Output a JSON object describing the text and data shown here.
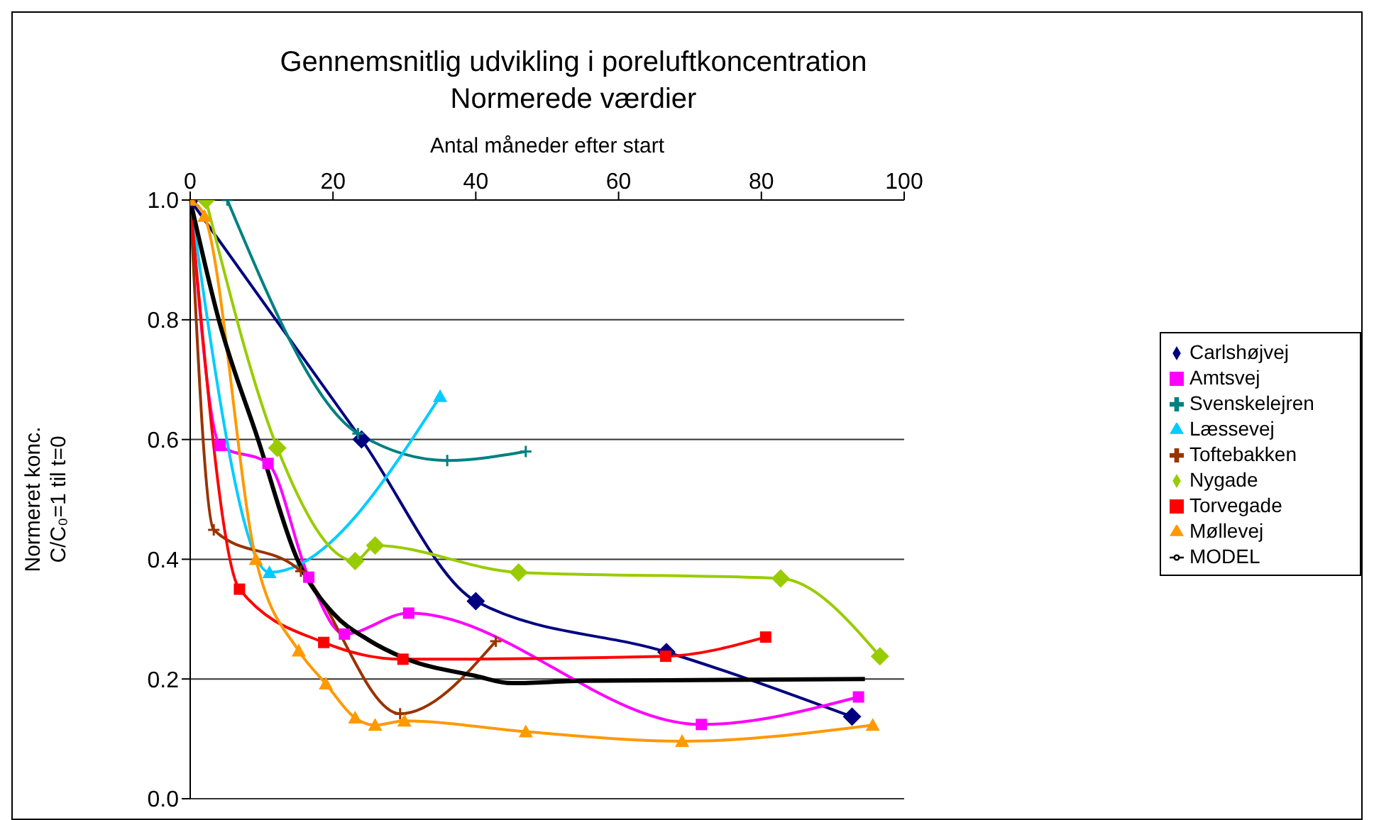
{
  "chart_data": {
    "type": "line",
    "title": "Gennemsnitlig udvikling i poreluftkoncentration",
    "subtitle": "Normerede værdier",
    "xlabel": "Antal måneder efter start",
    "ylabel": "Normeret konc.\nC/C₀=1 til t=0",
    "xlim": [
      0,
      100
    ],
    "xticks": [
      0,
      20,
      40,
      60,
      80,
      100
    ],
    "ylim": [
      0,
      1
    ],
    "yticks": [
      {
        "value": 0,
        "label": "0.0"
      },
      {
        "value": 0.2,
        "label": "0.2"
      },
      {
        "value": 0.4,
        "label": "0.4"
      },
      {
        "value": 0.6,
        "label": "0.6"
      },
      {
        "value": 0.8,
        "label": "0.8"
      },
      {
        "value": 1,
        "label": "1.0"
      }
    ],
    "grid": "y",
    "legend": "right",
    "line_style": "solid",
    "series": [
      {
        "name": "Carlshøjvej",
        "color": "#000080",
        "marker": "diamond",
        "x": [
          0,
          24,
          40,
          66.7,
          92.7
        ],
        "values": [
          1.0,
          0.6,
          0.33,
          0.245,
          0.137
        ]
      },
      {
        "name": "Amtsvej",
        "color": "#ff00ff",
        "marker": "square",
        "x": [
          0,
          4.2,
          10.9,
          16.6,
          21.6,
          30.6,
          71.6,
          93.6
        ],
        "values": [
          1.0,
          0.59,
          0.56,
          0.37,
          0.275,
          0.31,
          0.124,
          0.17
        ]
      },
      {
        "name": "Svenskelejren",
        "color": "#008080",
        "marker": "cross",
        "x": [
          5.2,
          23.5,
          36,
          47
        ],
        "values": [
          1.0,
          0.61,
          0.565,
          0.58
        ]
      },
      {
        "name": "Læssevej",
        "color": "#00ccff",
        "marker": "triangle",
        "x": [
          0,
          11.1,
          35
        ],
        "values": [
          1.0,
          0.378,
          0.672
        ]
      },
      {
        "name": "Toftebakken",
        "color": "#993300",
        "marker": "cross",
        "x": [
          0,
          3.3,
          15.5,
          29.4,
          42.8
        ],
        "values": [
          1.0,
          0.449,
          0.38,
          0.142,
          0.263
        ]
      },
      {
        "name": "Nygade",
        "color": "#99cc00",
        "marker": "diamond",
        "x": [
          2.2,
          12.2,
          23.1,
          25.9,
          46,
          82.7,
          96.6
        ],
        "values": [
          1.0,
          0.586,
          0.397,
          0.423,
          0.378,
          0.368,
          0.238
        ]
      },
      {
        "name": "Torvegade",
        "color": "#ff0000",
        "marker": "square",
        "x": [
          0,
          6.9,
          18.7,
          29.8,
          66.6,
          80.6
        ],
        "values": [
          1.0,
          0.35,
          0.261,
          0.233,
          0.238,
          0.27
        ]
      },
      {
        "name": "Møllevej",
        "color": "#ff9900",
        "marker": "triangle",
        "x": [
          0,
          2,
          9.2,
          15.2,
          19,
          23.1,
          25.9,
          30,
          47,
          68.9,
          95.6
        ],
        "values": [
          1.0,
          0.973,
          0.4,
          0.247,
          0.192,
          0.135,
          0.123,
          0.13,
          0.112,
          0.096,
          0.123
        ]
      },
      {
        "name": "MODEL",
        "color": "#000000",
        "marker": "none",
        "x": [
          0,
          4,
          9.5,
          15,
          20,
          25,
          30,
          40,
          45,
          55,
          94.5
        ],
        "values": [
          1.0,
          0.8,
          0.6,
          0.4,
          0.31,
          0.265,
          0.235,
          0.205,
          0.193,
          0.197,
          0.2
        ]
      }
    ]
  }
}
